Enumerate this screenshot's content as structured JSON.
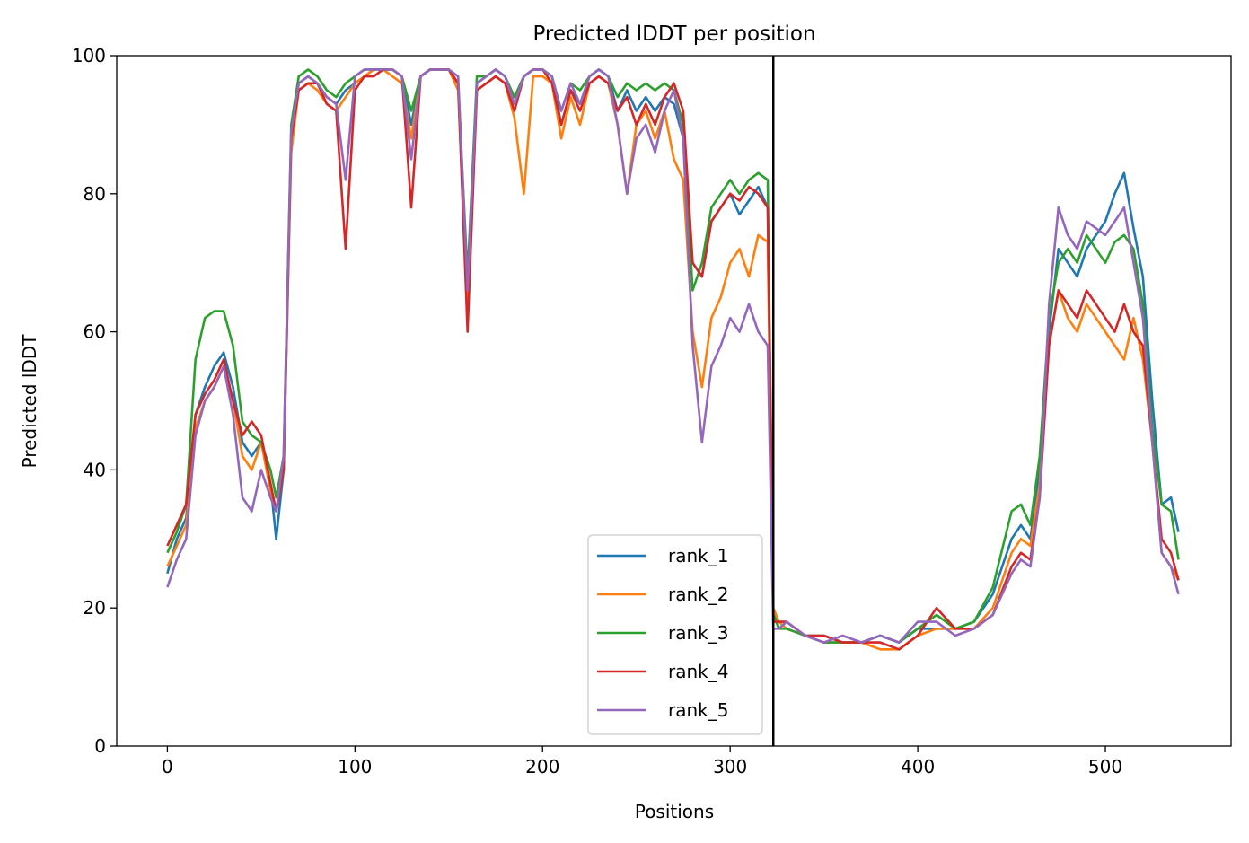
{
  "chart_data": {
    "type": "line",
    "title": "Predicted lDDT per position",
    "xlabel": "Positions",
    "ylabel": "Predicted lDDT",
    "xlim": [
      -27,
      567
    ],
    "ylim": [
      0,
      100
    ],
    "xticks": [
      0,
      100,
      200,
      300,
      400,
      500
    ],
    "yticks": [
      0,
      20,
      40,
      60,
      80,
      100
    ],
    "grid": false,
    "legend_position": "lower-center",
    "chain_break_x": 323,
    "series": [
      {
        "name": "rank_1",
        "color": "#1f77b4",
        "x": [
          0,
          5,
          10,
          15,
          20,
          25,
          30,
          35,
          40,
          45,
          50,
          55,
          58,
          62,
          66,
          70,
          75,
          80,
          85,
          90,
          95,
          100,
          105,
          110,
          115,
          120,
          125,
          130,
          135,
          140,
          145,
          150,
          155,
          160,
          165,
          170,
          175,
          180,
          185,
          190,
          195,
          200,
          205,
          210,
          215,
          220,
          225,
          230,
          235,
          240,
          245,
          250,
          255,
          260,
          265,
          270,
          275,
          280,
          285,
          290,
          295,
          300,
          305,
          310,
          315,
          320,
          323,
          326,
          330,
          340,
          350,
          360,
          370,
          380,
          390,
          400,
          410,
          420,
          430,
          440,
          450,
          455,
          460,
          465,
          470,
          475,
          480,
          485,
          490,
          495,
          500,
          505,
          510,
          515,
          520,
          525,
          530,
          535,
          539
        ],
        "y": [
          25,
          30,
          33,
          48,
          52,
          55,
          57,
          52,
          44,
          42,
          44,
          38,
          30,
          40,
          88,
          96,
          97,
          96,
          94,
          93,
          95,
          96,
          97,
          98,
          98,
          98,
          97,
          90,
          97,
          98,
          98,
          98,
          96,
          65,
          96,
          97,
          98,
          97,
          93,
          97,
          98,
          98,
          97,
          90,
          95,
          93,
          97,
          98,
          97,
          92,
          95,
          92,
          94,
          92,
          94,
          93,
          88,
          70,
          68,
          76,
          78,
          80,
          77,
          79,
          81,
          78,
          20,
          17,
          18,
          16,
          16,
          15,
          15,
          16,
          15,
          17,
          17,
          17,
          18,
          22,
          30,
          32,
          30,
          40,
          60,
          72,
          70,
          68,
          72,
          74,
          76,
          80,
          83,
          75,
          68,
          50,
          35,
          36,
          31
        ]
      },
      {
        "name": "rank_2",
        "color": "#ff7f0e",
        "x": [
          0,
          5,
          10,
          15,
          20,
          25,
          30,
          35,
          40,
          45,
          50,
          55,
          58,
          62,
          66,
          70,
          75,
          80,
          85,
          90,
          95,
          100,
          105,
          110,
          115,
          120,
          125,
          130,
          135,
          140,
          145,
          150,
          155,
          160,
          165,
          170,
          175,
          180,
          185,
          190,
          195,
          200,
          205,
          210,
          215,
          220,
          225,
          230,
          235,
          240,
          245,
          250,
          255,
          260,
          265,
          270,
          275,
          280,
          285,
          290,
          295,
          300,
          305,
          310,
          315,
          320,
          323,
          326,
          330,
          340,
          350,
          360,
          370,
          380,
          390,
          400,
          410,
          420,
          430,
          440,
          450,
          455,
          460,
          465,
          470,
          475,
          480,
          485,
          490,
          495,
          500,
          505,
          510,
          515,
          520,
          525,
          530,
          535,
          539
        ],
        "y": [
          26,
          29,
          32,
          46,
          50,
          52,
          55,
          50,
          42,
          40,
          44,
          37,
          34,
          40,
          86,
          95,
          96,
          95,
          93,
          92,
          94,
          96,
          97,
          98,
          98,
          97,
          96,
          88,
          97,
          98,
          98,
          98,
          95,
          62,
          95,
          96,
          97,
          96,
          91,
          80,
          97,
          97,
          96,
          88,
          94,
          90,
          96,
          97,
          96,
          90,
          80,
          90,
          92,
          88,
          92,
          85,
          82,
          60,
          52,
          62,
          65,
          70,
          72,
          68,
          74,
          73,
          20,
          18,
          17,
          16,
          15,
          15,
          15,
          14,
          14,
          16,
          17,
          17,
          17,
          20,
          28,
          30,
          29,
          38,
          58,
          66,
          62,
          60,
          64,
          62,
          60,
          58,
          56,
          62,
          56,
          44,
          28,
          26,
          24
        ]
      },
      {
        "name": "rank_3",
        "color": "#2ca02c",
        "x": [
          0,
          5,
          10,
          15,
          20,
          25,
          30,
          35,
          40,
          45,
          50,
          55,
          58,
          62,
          66,
          70,
          75,
          80,
          85,
          90,
          95,
          100,
          105,
          110,
          115,
          120,
          125,
          130,
          135,
          140,
          145,
          150,
          155,
          160,
          165,
          170,
          175,
          180,
          185,
          190,
          195,
          200,
          205,
          210,
          215,
          220,
          225,
          230,
          235,
          240,
          245,
          250,
          255,
          260,
          265,
          270,
          275,
          280,
          285,
          290,
          295,
          300,
          305,
          310,
          315,
          320,
          323,
          326,
          330,
          340,
          350,
          360,
          370,
          380,
          390,
          400,
          410,
          420,
          430,
          440,
          450,
          455,
          460,
          465,
          470,
          475,
          480,
          485,
          490,
          495,
          500,
          505,
          510,
          515,
          520,
          525,
          530,
          535,
          539
        ],
        "y": [
          28,
          31,
          35,
          56,
          62,
          63,
          63,
          58,
          47,
          45,
          44,
          40,
          36,
          42,
          90,
          97,
          98,
          97,
          95,
          94,
          96,
          97,
          98,
          98,
          98,
          98,
          97,
          92,
          97,
          98,
          98,
          98,
          96,
          68,
          97,
          97,
          98,
          97,
          94,
          97,
          98,
          98,
          97,
          92,
          96,
          95,
          97,
          98,
          97,
          94,
          96,
          95,
          96,
          95,
          96,
          95,
          90,
          66,
          70,
          78,
          80,
          82,
          80,
          82,
          83,
          82,
          19,
          17,
          17,
          16,
          15,
          15,
          15,
          16,
          15,
          17,
          19,
          17,
          18,
          23,
          34,
          35,
          32,
          42,
          62,
          70,
          72,
          70,
          74,
          72,
          70,
          73,
          74,
          72,
          64,
          46,
          35,
          34,
          27
        ]
      },
      {
        "name": "rank_4",
        "color": "#d62728",
        "x": [
          0,
          5,
          10,
          15,
          20,
          25,
          30,
          35,
          40,
          45,
          50,
          55,
          58,
          62,
          66,
          70,
          75,
          80,
          85,
          90,
          95,
          100,
          105,
          110,
          115,
          120,
          125,
          130,
          135,
          140,
          145,
          150,
          155,
          160,
          165,
          170,
          175,
          180,
          185,
          190,
          195,
          200,
          205,
          210,
          215,
          220,
          225,
          230,
          235,
          240,
          245,
          250,
          255,
          260,
          265,
          270,
          275,
          280,
          285,
          290,
          295,
          300,
          305,
          310,
          315,
          320,
          323,
          326,
          330,
          340,
          350,
          360,
          370,
          380,
          390,
          400,
          410,
          420,
          430,
          440,
          450,
          455,
          460,
          465,
          470,
          475,
          480,
          485,
          490,
          495,
          500,
          505,
          510,
          515,
          520,
          525,
          530,
          535,
          539
        ],
        "y": [
          29,
          32,
          35,
          48,
          51,
          53,
          56,
          50,
          45,
          47,
          45,
          38,
          34,
          40,
          88,
          95,
          96,
          96,
          93,
          92,
          72,
          95,
          97,
          97,
          98,
          98,
          97,
          78,
          97,
          98,
          98,
          98,
          96,
          60,
          95,
          96,
          97,
          96,
          92,
          97,
          98,
          98,
          96,
          90,
          95,
          92,
          96,
          97,
          96,
          92,
          94,
          90,
          93,
          90,
          94,
          96,
          92,
          70,
          68,
          76,
          78,
          80,
          79,
          81,
          80,
          78,
          18,
          18,
          18,
          16,
          16,
          15,
          15,
          15,
          14,
          16,
          20,
          17,
          17,
          19,
          26,
          28,
          27,
          36,
          58,
          66,
          64,
          62,
          66,
          64,
          62,
          60,
          64,
          60,
          58,
          44,
          30,
          28,
          24
        ]
      },
      {
        "name": "rank_5",
        "color": "#9467bd",
        "x": [
          0,
          5,
          10,
          15,
          20,
          25,
          30,
          35,
          40,
          45,
          50,
          55,
          58,
          62,
          66,
          70,
          75,
          80,
          85,
          90,
          95,
          100,
          105,
          110,
          115,
          120,
          125,
          130,
          135,
          140,
          145,
          150,
          155,
          160,
          165,
          170,
          175,
          180,
          185,
          190,
          195,
          200,
          205,
          210,
          215,
          220,
          225,
          230,
          235,
          240,
          245,
          250,
          255,
          260,
          265,
          270,
          275,
          280,
          285,
          290,
          295,
          300,
          305,
          310,
          315,
          320,
          323,
          326,
          330,
          340,
          350,
          360,
          370,
          380,
          390,
          400,
          410,
          420,
          430,
          440,
          450,
          455,
          460,
          465,
          470,
          475,
          480,
          485,
          490,
          495,
          500,
          505,
          510,
          515,
          520,
          525,
          530,
          535,
          539
        ],
        "y": [
          23,
          27,
          30,
          45,
          50,
          52,
          55,
          48,
          36,
          34,
          40,
          36,
          34,
          42,
          89,
          96,
          97,
          96,
          94,
          93,
          82,
          97,
          98,
          98,
          98,
          98,
          97,
          85,
          97,
          98,
          98,
          98,
          97,
          66,
          96,
          97,
          98,
          97,
          93,
          97,
          98,
          98,
          97,
          92,
          96,
          93,
          97,
          98,
          97,
          90,
          80,
          88,
          90,
          86,
          92,
          95,
          88,
          58,
          44,
          55,
          58,
          62,
          60,
          64,
          60,
          58,
          17,
          17,
          18,
          16,
          15,
          16,
          15,
          16,
          15,
          18,
          18,
          16,
          17,
          19,
          25,
          27,
          26,
          36,
          64,
          78,
          74,
          72,
          76,
          75,
          74,
          76,
          78,
          70,
          62,
          44,
          28,
          26,
          22
        ]
      }
    ]
  }
}
